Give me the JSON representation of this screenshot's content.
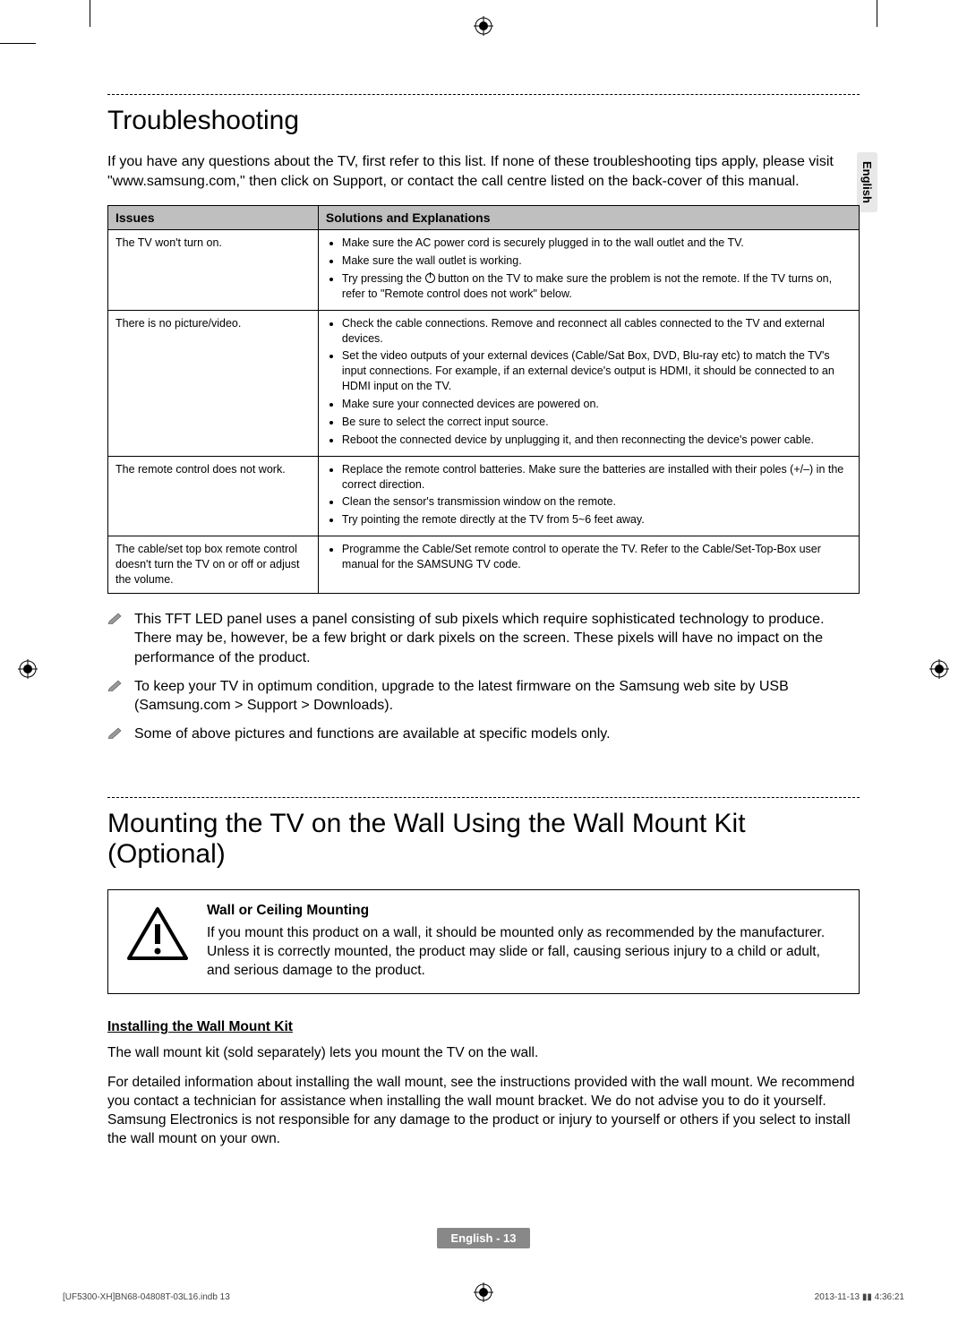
{
  "langTab": "English",
  "section1": {
    "title": "Troubleshooting",
    "intro": "If you have any questions about the TV, first refer to this list. If none of these troubleshooting tips apply, please visit \"www.samsung.com,\" then click on Support, or contact the call centre listed on the back-cover of this manual.",
    "headers": {
      "issues": "Issues",
      "solutions": "Solutions and Explanations"
    },
    "rows": [
      {
        "issue": "The TV won't turn on.",
        "points": [
          "Make sure the AC power cord is securely plugged in to the wall outlet and the TV.",
          "Make sure the wall outlet is working.",
          "Try pressing the __POWER__ button on the TV to make sure the problem is not the remote. If the TV turns on, refer to \"Remote control does not work\" below."
        ]
      },
      {
        "issue": "There is no picture/video.",
        "points": [
          "Check the cable connections. Remove and reconnect all cables connected to the TV and external devices.",
          "Set the video outputs of your external devices (Cable/Sat Box, DVD, Blu-ray etc) to match the TV's input connections. For example, if an external device's output is HDMI, it should be connected to an HDMI input on the TV.",
          "Make sure your connected devices are powered on.",
          "Be sure to select the correct input source.",
          "Reboot the connected device by unplugging it, and then reconnecting the device's power cable."
        ]
      },
      {
        "issue": "The remote control does not work.",
        "points": [
          "Replace the remote control batteries. Make sure the batteries are installed with their poles (+/–) in the correct direction.",
          "Clean the sensor's transmission window on the remote.",
          "Try pointing the remote directly at the TV from 5~6 feet away."
        ]
      },
      {
        "issue": "The cable/set top box remote control doesn't turn the TV on or off or adjust the volume.",
        "points": [
          "Programme the Cable/Set remote control to operate the TV. Refer to the Cable/Set-Top-Box user manual for the SAMSUNG TV code."
        ]
      }
    ],
    "notes": [
      "This TFT LED panel uses a panel consisting of sub pixels which require sophisticated technology to produce. There may be, however, be a few bright or dark pixels on the screen. These pixels will have no impact on the performance of the product.",
      "To keep your TV in optimum condition, upgrade to the latest firmware on the Samsung web site by USB (Samsung.com > Support > Downloads).",
      "Some of above pictures and functions are available at specific models only."
    ]
  },
  "section2": {
    "title": "Mounting the TV on the Wall Using the Wall Mount Kit (Optional)",
    "warning": {
      "title": "Wall or Ceiling Mounting",
      "text": "If you mount this product on a wall, it should be mounted only as recommended by the manufacturer. Unless it is correctly mounted, the product may slide or fall, causing serious injury to a child or adult, and serious damage to the product."
    },
    "subhead": "Installing the Wall Mount Kit",
    "p1": "The wall mount kit (sold separately) lets you mount the TV on the wall.",
    "p2": "For detailed information about installing the wall mount, see the instructions provided with the wall mount. We recommend you contact a technician for assistance when installing the wall mount bracket. We do not advise you to do it yourself. Samsung Electronics is not responsible for any damage to the product or injury to yourself or others if you select to install the wall mount on your own."
  },
  "footer": {
    "page": "English - 13",
    "left": "[UF5300-XH]BN68-04808T-03L16.indb   13",
    "right": "2013-11-13   ▮▮ 4:36:21"
  },
  "colors": {
    "headerBg": "#bfbfbf",
    "langTabBg": "#e8e8e8",
    "footerBadgeBg": "#888888"
  }
}
